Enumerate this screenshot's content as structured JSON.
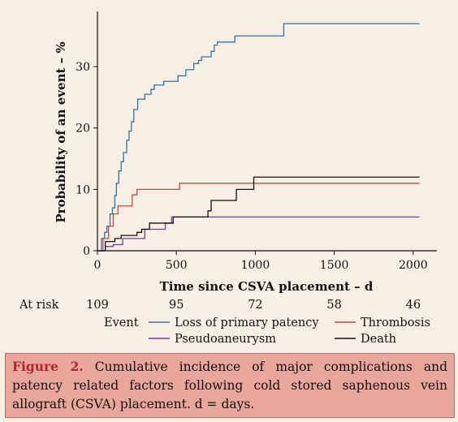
{
  "chart_data": {
    "type": "line",
    "step": true,
    "xlabel": "Time since CSVA placement – d",
    "ylabel": "Probability of an event – %",
    "xlim": [
      0,
      2150
    ],
    "ylim": [
      0,
      39
    ],
    "xticks": [
      0,
      500,
      1000,
      1500,
      2000
    ],
    "yticks": [
      0,
      10,
      20,
      30
    ],
    "grid": false,
    "legend_title": "Event",
    "legend_position": "bottom",
    "series": [
      {
        "name": "Loss of primary patency",
        "color": "#2f73ad",
        "x": [
          0,
          25,
          45,
          60,
          80,
          95,
          110,
          120,
          135,
          150,
          165,
          185,
          200,
          215,
          230,
          255,
          300,
          340,
          360,
          420,
          510,
          560,
          610,
          640,
          660,
          720,
          740,
          760,
          870,
          1180,
          2040
        ],
        "y": [
          0,
          2,
          3,
          4,
          6,
          7,
          9,
          11,
          13,
          14.5,
          16,
          18,
          19.5,
          21,
          23,
          24.7,
          25.5,
          26.3,
          27,
          27.6,
          28.5,
          29.5,
          30.5,
          31,
          31.6,
          32.5,
          33.5,
          34,
          35,
          37,
          37
        ]
      },
      {
        "name": "Thrombosis",
        "color": "#c8444c",
        "x": [
          0,
          35,
          70,
          100,
          130,
          220,
          250,
          520,
          2040
        ],
        "y": [
          0,
          2,
          4,
          6,
          7.3,
          9.1,
          10,
          11,
          11
        ]
      },
      {
        "name": "Pseudoaneurysm",
        "color": "#7b3f99",
        "x": [
          0,
          50,
          100,
          160,
          300,
          430,
          470,
          2040
        ],
        "y": [
          0,
          0.7,
          1,
          2,
          3.5,
          4.5,
          5.5,
          5.5
        ]
      },
      {
        "name": "Death",
        "color": "#111111",
        "x": [
          0,
          50,
          110,
          150,
          250,
          280,
          330,
          480,
          700,
          720,
          880,
          990,
          2040
        ],
        "y": [
          0,
          1.5,
          2,
          2.5,
          3,
          3.5,
          4.5,
          5.5,
          6.5,
          8.2,
          10,
          12,
          12
        ]
      }
    ],
    "at_risk": {
      "label": "At risk",
      "values": [
        "109",
        "95",
        "72",
        "58",
        "46"
      ]
    }
  },
  "caption": {
    "label": "Figure 2.",
    "text": " Cumulative incidence of major complications and patency related factors following cold stored saphenous vein allograft (CSVA) placement. d = days."
  }
}
